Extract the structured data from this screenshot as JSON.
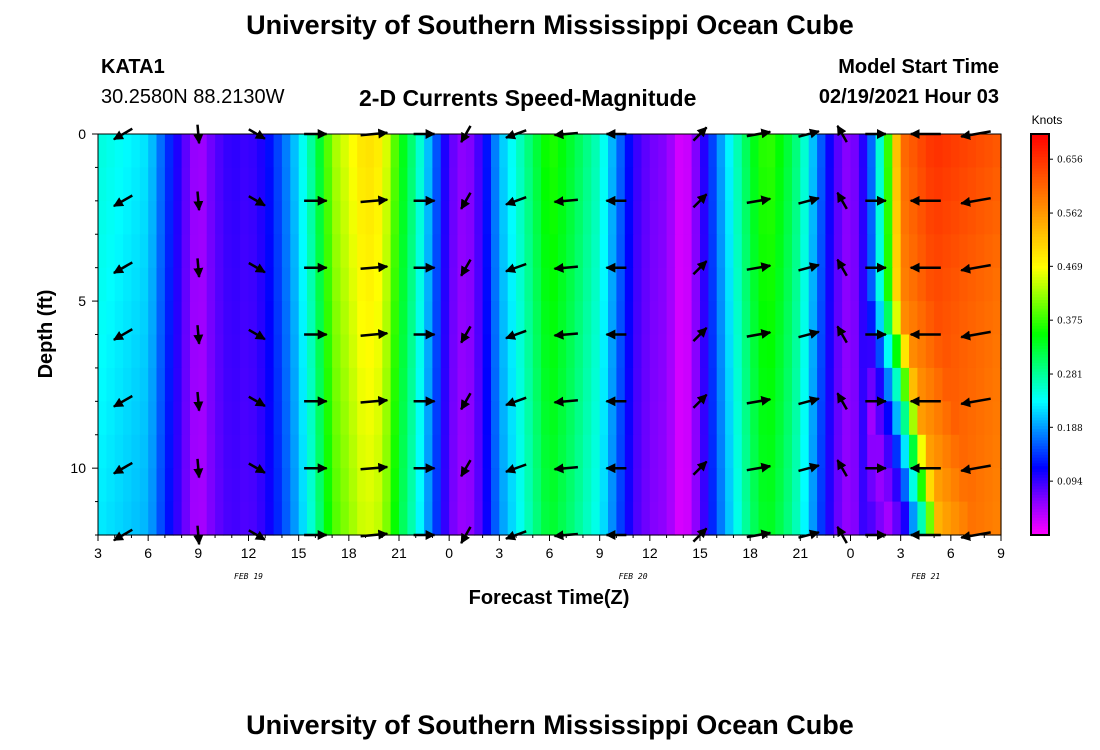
{
  "header": {
    "title": "University of Southern Mississippi Ocean Cube",
    "station": "KATA1",
    "coordinates": "30.2580N 88.2130W",
    "subtitle": "2-D Currents Speed-Magnitude",
    "model_start_label": "Model Start Time",
    "model_start_value": "02/19/2021 Hour 03"
  },
  "footer": {
    "title": "University of Southern Mississippi Ocean Cube"
  },
  "chart_data": {
    "type": "heatmap",
    "title": "2-D Currents Speed-Magnitude",
    "xlabel": "Forecast Time(Z)",
    "ylabel": "Depth (ft)",
    "x_range_hours": [
      0,
      54
    ],
    "x_ticks": [
      {
        "hour": 0,
        "label": "3"
      },
      {
        "hour": 3,
        "label": "6"
      },
      {
        "hour": 6,
        "label": "9"
      },
      {
        "hour": 9,
        "label": "12"
      },
      {
        "hour": 12,
        "label": "15"
      },
      {
        "hour": 15,
        "label": "18"
      },
      {
        "hour": 18,
        "label": "21"
      },
      {
        "hour": 21,
        "label": "0"
      },
      {
        "hour": 24,
        "label": "3"
      },
      {
        "hour": 27,
        "label": "6"
      },
      {
        "hour": 30,
        "label": "9"
      },
      {
        "hour": 33,
        "label": "12"
      },
      {
        "hour": 36,
        "label": "15"
      },
      {
        "hour": 39,
        "label": "18"
      },
      {
        "hour": 42,
        "label": "21"
      },
      {
        "hour": 45,
        "label": "0"
      },
      {
        "hour": 48,
        "label": "3"
      },
      {
        "hour": 51,
        "label": "6"
      },
      {
        "hour": 54,
        "label": "9"
      }
    ],
    "date_labels": [
      {
        "hour": 9,
        "label": "FEB 19"
      },
      {
        "hour": 32,
        "label": "FEB 20"
      },
      {
        "hour": 49.5,
        "label": "FEB 21"
      }
    ],
    "y_range_ft": [
      0,
      12
    ],
    "y_ticks": [
      {
        "value": 0,
        "label": "0"
      },
      {
        "value": 5,
        "label": "5"
      },
      {
        "value": 10,
        "label": "10"
      }
    ],
    "speed_profile_knots": [
      {
        "hour": 0,
        "speed": 0.25
      },
      {
        "hour": 3,
        "speed": 0.22
      },
      {
        "hour": 4,
        "speed": 0.15
      },
      {
        "hour": 5,
        "speed": 0.09
      },
      {
        "hour": 6,
        "speed": 0.04
      },
      {
        "hour": 7,
        "speed": 0.08
      },
      {
        "hour": 8,
        "speed": 0.1
      },
      {
        "hour": 9,
        "speed": 0.09
      },
      {
        "hour": 10,
        "speed": 0.11
      },
      {
        "hour": 11,
        "speed": 0.16
      },
      {
        "hour": 12,
        "speed": 0.22
      },
      {
        "hour": 13,
        "speed": 0.3
      },
      {
        "hour": 14,
        "speed": 0.42
      },
      {
        "hour": 16,
        "speed": 0.5
      },
      {
        "hour": 17,
        "speed": 0.48
      },
      {
        "hour": 18,
        "speed": 0.36
      },
      {
        "hour": 19,
        "speed": 0.28
      },
      {
        "hour": 20,
        "speed": 0.18
      },
      {
        "hour": 21,
        "speed": 0.08
      },
      {
        "hour": 22,
        "speed": 0.05
      },
      {
        "hour": 23,
        "speed": 0.1
      },
      {
        "hour": 24,
        "speed": 0.2
      },
      {
        "hour": 25,
        "speed": 0.25
      },
      {
        "hour": 26,
        "speed": 0.31
      },
      {
        "hour": 27,
        "speed": 0.37
      },
      {
        "hour": 28,
        "speed": 0.34
      },
      {
        "hour": 29,
        "speed": 0.3
      },
      {
        "hour": 30,
        "speed": 0.26
      },
      {
        "hour": 31,
        "speed": 0.18
      },
      {
        "hour": 32,
        "speed": 0.1
      },
      {
        "hour": 33,
        "speed": 0.07
      },
      {
        "hour": 34,
        "speed": 0.06
      },
      {
        "hour": 35,
        "speed": 0.01
      },
      {
        "hour": 36,
        "speed": 0.08
      },
      {
        "hour": 37,
        "speed": 0.17
      },
      {
        "hour": 38,
        "speed": 0.25
      },
      {
        "hour": 39,
        "speed": 0.33
      },
      {
        "hour": 40,
        "speed": 0.38
      },
      {
        "hour": 41,
        "speed": 0.34
      },
      {
        "hour": 42,
        "speed": 0.28
      },
      {
        "hour": 43,
        "speed": 0.18
      },
      {
        "hour": 44,
        "speed": 0.09
      },
      {
        "hour": 45,
        "speed": 0.05
      },
      {
        "hour": 46,
        "speed": 0.12
      },
      {
        "hour": 47,
        "speed": 0.3
      },
      {
        "hour": 48,
        "speed": 0.6
      },
      {
        "hour": 50,
        "speed": 0.66
      },
      {
        "hour": 52,
        "speed": 0.64
      },
      {
        "hour": 54,
        "speed": 0.62
      }
    ],
    "vector_depths_ft": [
      0,
      2,
      4,
      6,
      8,
      10,
      12
    ],
    "vectors": [
      {
        "hour": 1.5,
        "dir_deg": 240
      },
      {
        "hour": 6,
        "dir_deg": 175
      },
      {
        "hour": 9.5,
        "dir_deg": 120
      },
      {
        "hour": 13,
        "dir_deg": 90
      },
      {
        "hour": 16.5,
        "dir_deg": 85
      },
      {
        "hour": 19.5,
        "dir_deg": 90
      },
      {
        "hour": 22,
        "dir_deg": 210
      },
      {
        "hour": 25,
        "dir_deg": 250
      },
      {
        "hour": 28,
        "dir_deg": 265
      },
      {
        "hour": 31,
        "dir_deg": 270
      },
      {
        "hour": 36,
        "dir_deg": 45
      },
      {
        "hour": 39.5,
        "dir_deg": 80
      },
      {
        "hour": 42.5,
        "dir_deg": 75
      },
      {
        "hour": 44.5,
        "dir_deg": 330
      },
      {
        "hour": 46.5,
        "dir_deg": 90
      },
      {
        "hour": 49.5,
        "dir_deg": 270
      },
      {
        "hour": 52.5,
        "dir_deg": 260
      }
    ],
    "colorbar": {
      "unit": "Knots",
      "range": [
        0,
        0.7
      ],
      "tick_values": [
        0.094,
        0.188,
        0.281,
        0.375,
        0.469,
        0.562,
        0.656
      ],
      "tick_labels": [
        "0.094",
        "0.188",
        "0.281",
        "0.375",
        "0.469",
        "0.562",
        "0.656"
      ],
      "colors": [
        "#ff00ff",
        "#8a00ff",
        "#0000ff",
        "#0080ff",
        "#00ffff",
        "#00ff80",
        "#00ff00",
        "#80ff00",
        "#ffff00",
        "#ffc000",
        "#ff8000",
        "#ff4000",
        "#ff0000"
      ]
    }
  }
}
